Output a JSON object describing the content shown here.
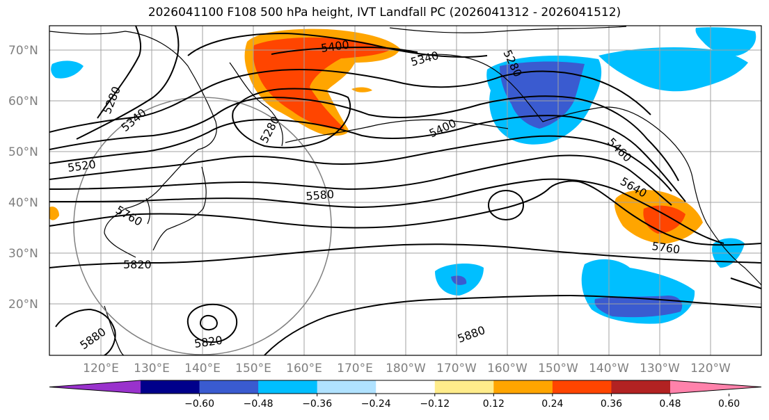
{
  "title": "2026041100 F108 500 hPa height, IVT Landfall PC (2026041312 - 2026041512)",
  "lat_labels": [
    "70°N",
    "60°N",
    "50°N",
    "40°N",
    "30°N",
    "20°N"
  ],
  "lon_labels": [
    "120°E",
    "130°E",
    "140°E",
    "150°E",
    "160°E",
    "170°E",
    "180°W",
    "170°W",
    "160°W",
    "150°W",
    "140°W",
    "130°W",
    "120°W"
  ],
  "contour_labels": [
    "5400",
    "5340",
    "5280",
    "5340",
    "5280",
    "5280",
    "5400",
    "5520",
    "5580",
    "5460",
    "5640",
    "5760",
    "5760",
    "5820",
    "5820",
    "5880",
    "5880"
  ],
  "colorbar": {
    "ticks": [
      "−0.60",
      "−0.48",
      "−0.36",
      "−0.24",
      "−0.12",
      "0.12",
      "0.24",
      "0.36",
      "0.48",
      "0.60"
    ],
    "colors": [
      "#9932cc",
      "#00008b",
      "#3a5bd0",
      "#00bfff",
      "#b0e2ff",
      "#ffffff",
      "#ffec8b",
      "#ffa500",
      "#ff4500",
      "#b22222",
      "#ff82ab"
    ]
  },
  "colors": {
    "grid": "#a0a0a0",
    "contour": "#000000",
    "circle": "#808080"
  }
}
